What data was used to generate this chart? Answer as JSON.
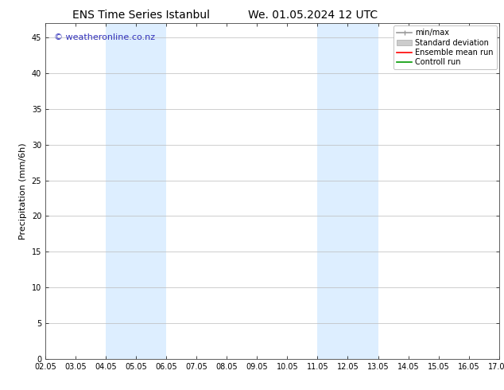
{
  "title_left": "ENS Time Series Istanbul",
  "title_right": "We. 01.05.2024 12 UTC",
  "ylabel": "Precipitation (mm/6h)",
  "watermark": "© weatheronline.co.nz",
  "xlim": [
    0,
    15
  ],
  "ylim": [
    0,
    47
  ],
  "yticks": [
    0,
    5,
    10,
    15,
    20,
    25,
    30,
    35,
    40,
    45
  ],
  "xtick_labels": [
    "02.05",
    "03.05",
    "04.05",
    "05.05",
    "06.05",
    "07.05",
    "08.05",
    "09.05",
    "10.05",
    "11.05",
    "12.05",
    "13.05",
    "14.05",
    "15.05",
    "16.05",
    "17.05"
  ],
  "xtick_positions": [
    0,
    1,
    2,
    3,
    4,
    5,
    6,
    7,
    8,
    9,
    10,
    11,
    12,
    13,
    14,
    15
  ],
  "shaded_regions": [
    {
      "xmin": 2.0,
      "xmax": 4.0,
      "color": "#ddeeff"
    },
    {
      "xmin": 9.0,
      "xmax": 11.0,
      "color": "#ddeeff"
    }
  ],
  "legend_labels": [
    "min/max",
    "Standard deviation",
    "Ensemble mean run",
    "Controll run"
  ],
  "legend_colors": [
    "#999999",
    "#cccccc",
    "#ff0000",
    "#009900"
  ],
  "bg_color": "#ffffff",
  "plot_bg_color": "#ffffff",
  "grid_color": "#bbbbbb",
  "title_fontsize": 10,
  "axis_label_fontsize": 8,
  "tick_fontsize": 7,
  "watermark_color": "#3333bb",
  "watermark_fontsize": 8,
  "legend_fontsize": 7
}
